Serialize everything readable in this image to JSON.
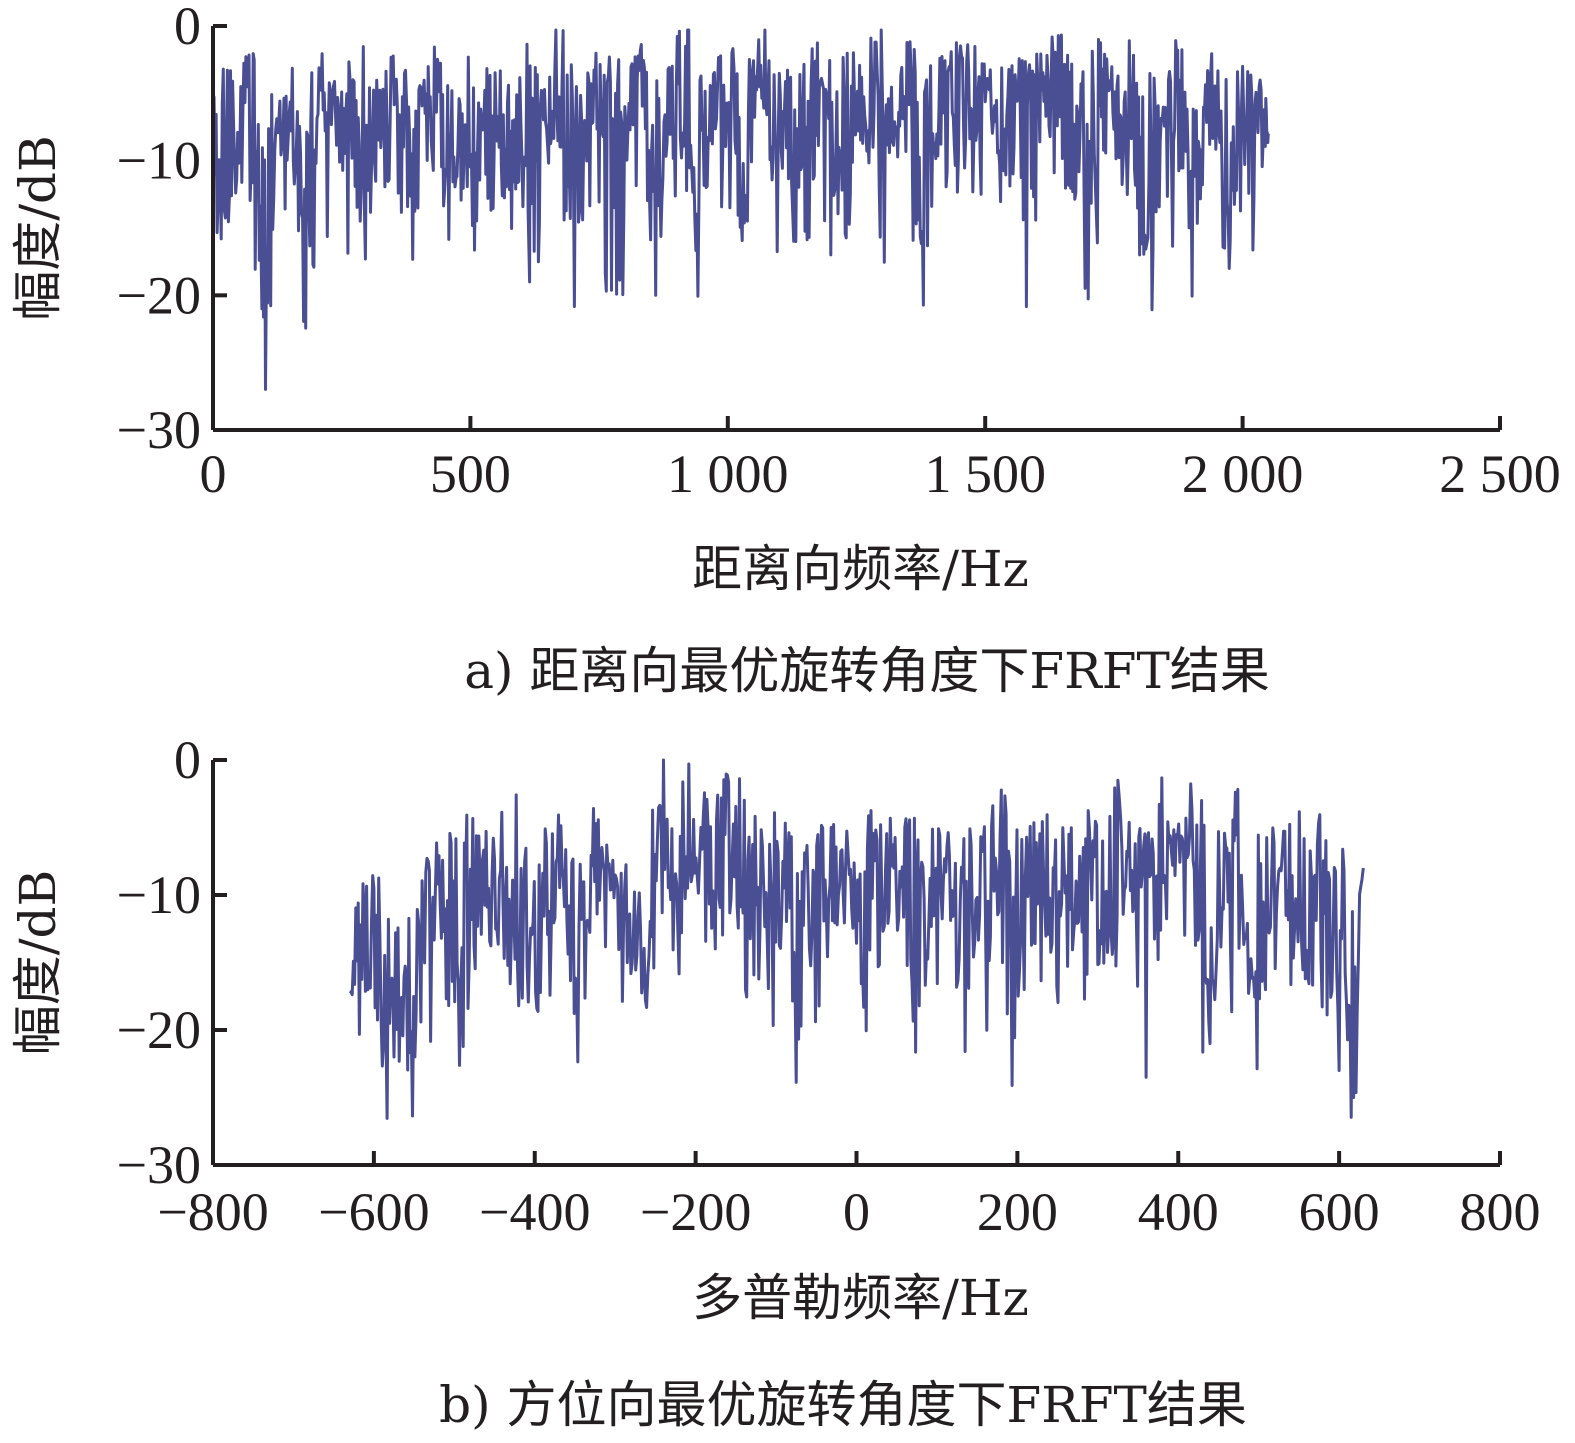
{
  "colors": {
    "series": "#4a4e92",
    "axis": "#231f20"
  },
  "chart_data": [
    {
      "type": "line",
      "caption": "a) 距离向最优旋转角度下FRFT结果",
      "xlabel": "距离向频率/Hz",
      "ylabel": "幅度/dB",
      "xlim": [
        0,
        2500
      ],
      "ylim": [
        -30,
        0
      ],
      "xticks": [
        0,
        500,
        1000,
        1500,
        2000,
        2500
      ],
      "xtick_labels": [
        "0",
        "500",
        "1 000",
        "1 500",
        "2 000",
        "2 500"
      ],
      "yticks": [
        0,
        -10,
        -20,
        -30
      ],
      "ytick_labels": [
        "0",
        "−10",
        "−20",
        "−30"
      ],
      "grid": false,
      "series": [
        {
          "x": [
            0,
            20,
            40,
            60,
            80,
            100,
            120,
            140,
            160,
            180,
            200,
            220,
            240,
            260,
            280,
            300,
            320,
            340,
            360,
            380,
            400,
            420,
            440,
            460,
            480,
            500,
            520,
            540,
            560,
            580,
            600,
            620,
            640,
            660,
            680,
            700,
            720,
            740,
            760,
            780,
            800,
            820,
            840,
            860,
            880,
            900,
            920,
            940,
            960,
            980,
            1000,
            1020,
            1040,
            1060,
            1080,
            1100,
            1120,
            1140,
            1160,
            1180,
            1200,
            1220,
            1240,
            1260,
            1280,
            1300,
            1320,
            1340,
            1360,
            1380,
            1400,
            1420,
            1440,
            1460,
            1480,
            1500,
            1520,
            1540,
            1560,
            1580,
            1600,
            1620,
            1640,
            1660,
            1680,
            1700,
            1720,
            1740,
            1760,
            1780,
            1800,
            1820,
            1840,
            1860,
            1880,
            1900,
            1920,
            1940,
            1960,
            1980,
            2000,
            2020,
            2040,
            2050
          ],
          "y": [
            -5,
            -16,
            -4,
            -12,
            -3,
            -21,
            -5,
            -9,
            -4,
            -17,
            -3,
            -8,
            -5,
            -11,
            -2,
            -14,
            -4,
            -7,
            -3,
            -13,
            -4,
            -6,
            -2,
            -11,
            -3,
            -15,
            -2,
            -9,
            -4,
            -12,
            -2,
            -17,
            -3,
            -8,
            -1,
            -14,
            -4,
            -10,
            -2,
            -19,
            -3,
            -7,
            -2,
            -15,
            -3,
            -9,
            -1,
            -13,
            -4,
            -8,
            -2,
            -14,
            -3,
            -6,
            -1,
            -11,
            -4,
            -16,
            -2,
            -9,
            -3,
            -17,
            -2,
            -10,
            -1,
            -12,
            -4,
            -8,
            -2,
            -16,
            -3,
            -9,
            -1,
            -13,
            -2,
            -7,
            -4,
            -11,
            -2,
            -14,
            -3,
            -8,
            -1,
            -12,
            -3,
            -16,
            -2,
            -9,
            -4,
            -13,
            -2,
            -17,
            -3,
            -10,
            -2,
            -15,
            -4,
            -9,
            -3,
            -16,
            -4,
            -12,
            -5,
            -8
          ],
          "dense_peaks": [
            [
              95,
              -21
            ],
            [
              615,
              -19
            ],
            [
              860,
              -20
            ],
            [
              1200,
              -17
            ],
            [
              1800,
              -17
            ],
            [
              1965,
              -16.5
            ]
          ]
        }
      ]
    },
    {
      "type": "line",
      "caption": "b) 方位向最优旋转角度下FRFT结果",
      "xlabel": "多普勒频率/Hz",
      "ylabel": "幅度/dB",
      "xlim": [
        -800,
        800
      ],
      "ylim": [
        -30,
        0
      ],
      "xticks": [
        -800,
        -600,
        -400,
        -200,
        0,
        200,
        400,
        600,
        800
      ],
      "xtick_labels": [
        "−800",
        "−600",
        "−400",
        "−200",
        "0",
        "200",
        "400",
        "600",
        "800"
      ],
      "yticks": [
        0,
        -10,
        -20,
        -30
      ],
      "ytick_labels": [
        "0",
        "−10",
        "−20",
        "−30"
      ],
      "grid": false,
      "series": [
        {
          "x": [
            -630,
            -615,
            -600,
            -585,
            -570,
            -555,
            -540,
            -525,
            -510,
            -495,
            -480,
            -465,
            -450,
            -435,
            -420,
            -405,
            -390,
            -375,
            -360,
            -345,
            -330,
            -315,
            -300,
            -285,
            -270,
            -255,
            -240,
            -225,
            -210,
            -195,
            -180,
            -165,
            -150,
            -135,
            -120,
            -105,
            -90,
            -75,
            -60,
            -45,
            -30,
            -15,
            0,
            15,
            30,
            45,
            60,
            75,
            90,
            105,
            120,
            135,
            150,
            165,
            180,
            195,
            210,
            225,
            240,
            255,
            270,
            285,
            300,
            315,
            330,
            345,
            360,
            375,
            390,
            405,
            420,
            435,
            450,
            465,
            480,
            495,
            510,
            525,
            540,
            555,
            570,
            585,
            600,
            615,
            630
          ],
          "y": [
            -11,
            -17,
            -9,
            -21,
            -12,
            -22,
            -8,
            -15,
            -6,
            -19,
            -5,
            -13,
            -4,
            -16,
            -3,
            -18,
            -6,
            -12,
            -5,
            -19,
            -4,
            -11,
            -7,
            -15,
            -8,
            -18,
            -4,
            -12,
            -1,
            -10,
            -3,
            -14,
            -2,
            -17,
            -5,
            -13,
            -4,
            -16,
            -6,
            -19,
            -5,
            -12,
            -6,
            -15,
            -4,
            -13,
            -5,
            -17,
            -6,
            -12,
            -4,
            -16,
            -5,
            -14,
            -3,
            -18,
            -5,
            -13,
            -4,
            -15,
            -6,
            -12,
            -4,
            -17,
            -3,
            -11,
            -6,
            -8,
            -2,
            -7,
            -2,
            -23,
            -5,
            -14,
            -3,
            -18,
            -6,
            -12,
            -4,
            -16,
            -5,
            -19,
            -6,
            -23,
            -8
          ],
          "dense_peaks": [
            [
              -575,
              -22
            ],
            [
              -240,
              0
            ],
            [
              325,
              -1.5
            ],
            [
              360,
              -23.5
            ],
            [
              600,
              -23
            ]
          ]
        }
      ]
    }
  ]
}
